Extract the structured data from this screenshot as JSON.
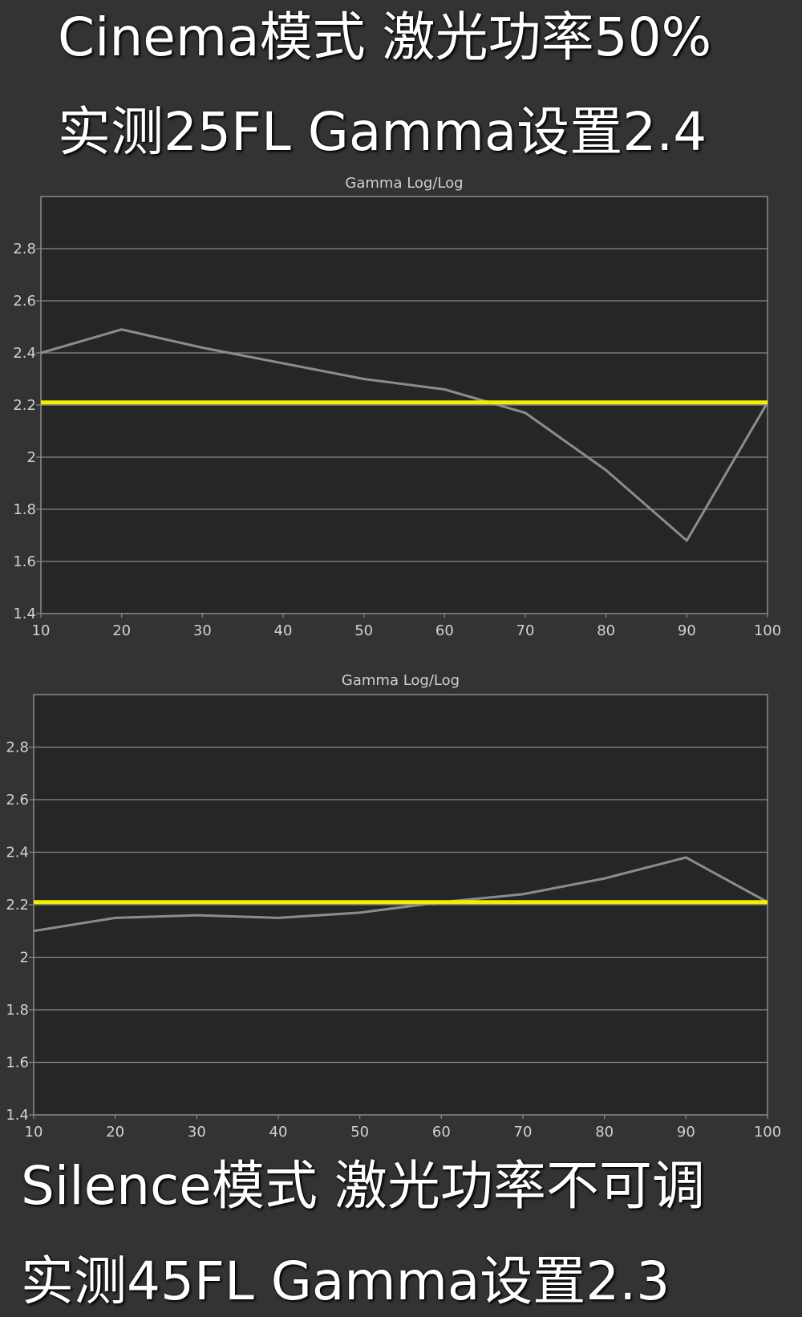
{
  "headlines": {
    "top_line_1": "Cinema模式 激光功率50%",
    "top_line_2": "实测25FL  Gamma设置2.4",
    "bottom_line_1": "Silence模式 激光功率不可调",
    "bottom_line_2": "实测45FL Gamma设置2.3"
  },
  "colors": {
    "background": "#333333",
    "plot_background": "#262626",
    "grid": "#8a8a8a",
    "measured_line": "#8c8c8c",
    "reference_line": "#f2ee00"
  },
  "chart_data": [
    {
      "type": "line",
      "title": "Gamma Log/Log",
      "x": [
        10,
        20,
        30,
        40,
        50,
        60,
        70,
        80,
        90,
        100
      ],
      "xlim": [
        10,
        100
      ],
      "ylim": [
        1.4,
        3.0
      ],
      "x_ticks": [
        "10",
        "20",
        "30",
        "40",
        "50",
        "60",
        "70",
        "80",
        "90",
        "100"
      ],
      "y_ticks": [
        "1.4",
        "1.6",
        "1.8",
        "2",
        "2.2",
        "2.4",
        "2.6",
        "2.8"
      ],
      "grid": true,
      "series": [
        {
          "values": [
            2.4,
            2.49,
            2.42,
            2.36,
            2.3,
            2.26,
            2.17,
            1.95,
            1.68,
            2.21
          ],
          "color": "#8c8c8c"
        },
        {
          "values": [
            2.21,
            2.21,
            2.21,
            2.21,
            2.21,
            2.21,
            2.21,
            2.21,
            2.21,
            2.21
          ],
          "color": "#f2ee00"
        }
      ]
    },
    {
      "type": "line",
      "title": "Gamma Log/Log",
      "x": [
        10,
        20,
        30,
        40,
        50,
        60,
        70,
        80,
        90,
        100
      ],
      "xlim": [
        10,
        100
      ],
      "ylim": [
        1.4,
        3.0
      ],
      "x_ticks": [
        "10",
        "20",
        "30",
        "40",
        "50",
        "60",
        "70",
        "80",
        "90",
        "100"
      ],
      "y_ticks": [
        "1.4",
        "1.6",
        "1.8",
        "2",
        "2.2",
        "2.4",
        "2.6",
        "2.8"
      ],
      "grid": true,
      "series": [
        {
          "values": [
            2.1,
            2.15,
            2.16,
            2.15,
            2.17,
            2.21,
            2.24,
            2.3,
            2.38,
            2.21
          ],
          "color": "#8c8c8c"
        },
        {
          "values": [
            2.21,
            2.21,
            2.21,
            2.21,
            2.21,
            2.21,
            2.21,
            2.21,
            2.21,
            2.21
          ],
          "color": "#f2ee00"
        }
      ]
    }
  ]
}
